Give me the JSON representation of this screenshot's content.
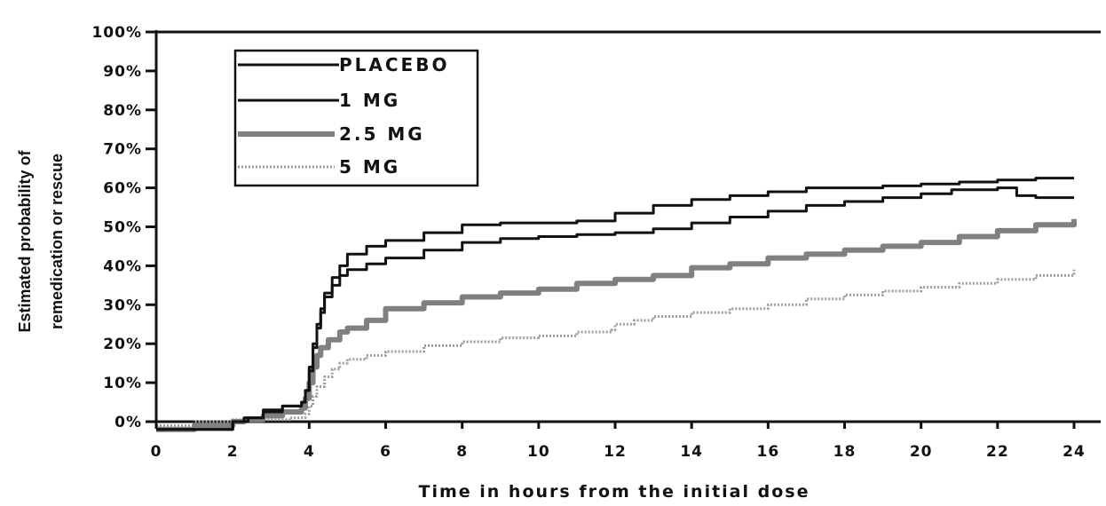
{
  "chart_data": {
    "type": "line",
    "title": "",
    "xlabel": "Time in hours from the initial dose",
    "ylabel": [
      "Estimated probability of",
      "remedication or rescue"
    ],
    "xlim": [
      0,
      24
    ],
    "ylim": [
      0,
      100
    ],
    "x_ticks": [
      0,
      2,
      4,
      6,
      8,
      10,
      12,
      14,
      16,
      18,
      20,
      22,
      24
    ],
    "x_tick_labels": [
      "0",
      "2",
      "4",
      "6",
      "8",
      "10",
      "12",
      "14",
      "16",
      "18",
      "20",
      "22",
      "24"
    ],
    "y_ticks": [
      0,
      10,
      20,
      30,
      40,
      50,
      60,
      70,
      80,
      90,
      100
    ],
    "y_tick_labels": [
      "0%",
      "10%",
      "20%",
      "30%",
      "40%",
      "50%",
      "60%",
      "70%",
      "80%",
      "90%",
      "100%"
    ],
    "grid": false,
    "legend_position": "top-left",
    "series": [
      {
        "name": "PLACEBO",
        "color": "#111111",
        "style": "solid",
        "x": [
          0,
          1,
          2,
          2.3,
          2.8,
          3.3,
          3.8,
          3.9,
          4.0,
          4.1,
          4.2,
          4.3,
          4.4,
          4.6,
          4.8,
          5.0,
          5.5,
          6,
          7,
          8,
          9,
          10,
          11,
          12,
          13,
          14,
          15,
          16,
          17,
          18,
          19,
          20,
          21,
          22,
          23,
          24
        ],
        "y": [
          -2,
          -2,
          0,
          1,
          3,
          4,
          5,
          8,
          14,
          20,
          25,
          29,
          33,
          37,
          40,
          43,
          45,
          46.5,
          48.5,
          50.5,
          51,
          51,
          51.5,
          53.5,
          55.5,
          57,
          58,
          59,
          60,
          60,
          60.5,
          61,
          61.5,
          62,
          62.5,
          62.5
        ]
      },
      {
        "name": "1 MG",
        "color": "#111111",
        "style": "solid",
        "x": [
          0,
          1,
          2,
          2.4,
          2.8,
          3.3,
          3.8,
          3.9,
          4.0,
          4.1,
          4.2,
          4.3,
          4.4,
          4.6,
          4.8,
          5.0,
          5.5,
          6,
          7,
          8,
          9,
          10,
          11,
          12,
          13,
          14,
          15,
          16,
          17,
          18,
          19,
          20,
          20.8,
          21.5,
          22,
          22.5,
          23,
          24
        ],
        "y": [
          -2,
          -2,
          0,
          1,
          2.5,
          4,
          5,
          8,
          13,
          19,
          24,
          28,
          32,
          35,
          37.5,
          39,
          40.5,
          42,
          44,
          46,
          47,
          47.5,
          48,
          48.5,
          49.5,
          51,
          52.5,
          54,
          55.5,
          56.5,
          57.5,
          58.5,
          59.5,
          59.5,
          60,
          58,
          57.5,
          57.5
        ]
      },
      {
        "name": "2.5 MG",
        "color": "#808080",
        "style": "solid",
        "x": [
          0,
          1,
          2,
          2.3,
          2.8,
          3.3,
          3.8,
          3.9,
          4.0,
          4.1,
          4.2,
          4.3,
          4.5,
          4.8,
          5.0,
          5.5,
          6,
          7,
          8,
          9,
          10,
          11,
          12,
          13,
          14,
          15,
          16,
          17,
          18,
          19,
          20,
          21,
          22,
          23,
          24
        ],
        "y": [
          -2,
          -1,
          0,
          0.5,
          1.5,
          2.5,
          3.5,
          6,
          10,
          14,
          17,
          19,
          21,
          23,
          24,
          26,
          29,
          30.5,
          32,
          33,
          34,
          35.5,
          36.5,
          37.5,
          39.5,
          40.5,
          42,
          43,
          44,
          45,
          46,
          47.5,
          49,
          50.5,
          52
        ]
      },
      {
        "name": "5 MG",
        "color": "#9c9c9c",
        "style": "dotted",
        "x": [
          0,
          1,
          2,
          2.5,
          3.0,
          3.5,
          3.9,
          4.0,
          4.1,
          4.2,
          4.4,
          4.6,
          4.8,
          5.0,
          5.5,
          6,
          7,
          8,
          9,
          10,
          11,
          11.9,
          12,
          12.5,
          13,
          14,
          15,
          16,
          17,
          18,
          19,
          20,
          21,
          22,
          23,
          24
        ],
        "y": [
          -1,
          0,
          0.5,
          0.5,
          0.5,
          1,
          2,
          4,
          6.5,
          9,
          11.5,
          13.5,
          15,
          16,
          17,
          18,
          19.5,
          20.5,
          21.5,
          22,
          23,
          23.5,
          25,
          26,
          27,
          28,
          29,
          30,
          31.5,
          32.5,
          33.5,
          34.5,
          35.5,
          36.5,
          37.5,
          39
        ]
      }
    ]
  }
}
